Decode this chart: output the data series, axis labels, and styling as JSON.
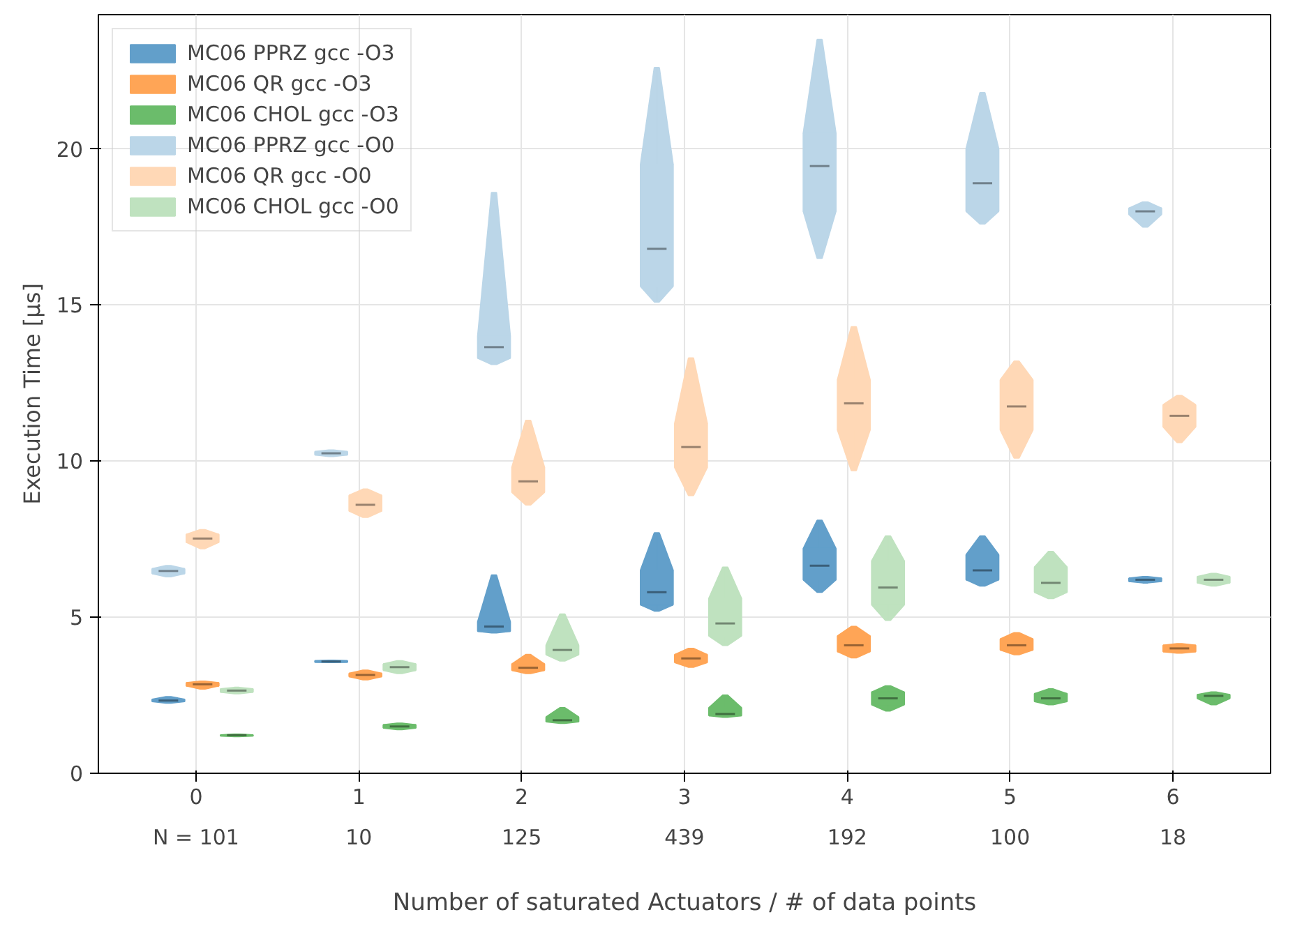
{
  "chart_data": {
    "type": "box",
    "categories": [
      "0",
      "1",
      "2",
      "3",
      "4",
      "5",
      "6"
    ],
    "xlabel": "Number of saturated Actuators / # of data points",
    "ylabel": "Execution Time [µs]",
    "ylim": [
      0,
      24.3
    ],
    "yticks": [
      0,
      5,
      10,
      15,
      20
    ],
    "grid": true,
    "legend": "top left",
    "annotations": [
      "N = 101",
      "10",
      "125",
      "439",
      "192",
      "100",
      "18"
    ],
    "series": [
      {
        "name": "MC06 PPRZ gcc -O3",
        "color": "#629fca",
        "boxes": [
          {
            "low": 2.25,
            "q1": 2.3,
            "median": 2.33,
            "q3": 2.37,
            "high": 2.45
          },
          {
            "low": 3.55,
            "q1": 3.56,
            "median": 3.58,
            "q3": 3.6,
            "high": 3.62
          },
          {
            "low": 4.5,
            "q1": 4.55,
            "median": 4.7,
            "q3": 4.85,
            "high": 6.35
          },
          {
            "low": 5.2,
            "q1": 5.4,
            "median": 5.8,
            "q3": 6.5,
            "high": 7.7
          },
          {
            "low": 5.8,
            "q1": 6.2,
            "median": 6.65,
            "q3": 7.2,
            "high": 8.1
          },
          {
            "low": 6.0,
            "q1": 6.2,
            "median": 6.5,
            "q3": 7.0,
            "high": 7.6
          },
          {
            "low": 6.1,
            "q1": 6.15,
            "median": 6.2,
            "q3": 6.25,
            "high": 6.3
          }
        ]
      },
      {
        "name": "MC06 QR gcc -O3",
        "color": "#ffa556",
        "boxes": [
          {
            "low": 2.7,
            "q1": 2.8,
            "median": 2.85,
            "q3": 2.9,
            "high": 2.95
          },
          {
            "low": 3.0,
            "q1": 3.1,
            "median": 3.15,
            "q3": 3.2,
            "high": 3.3
          },
          {
            "low": 3.2,
            "q1": 3.3,
            "median": 3.38,
            "q3": 3.5,
            "high": 3.8
          },
          {
            "low": 3.4,
            "q1": 3.55,
            "median": 3.68,
            "q3": 3.8,
            "high": 4.0
          },
          {
            "low": 3.7,
            "q1": 3.9,
            "median": 4.1,
            "q3": 4.4,
            "high": 4.7
          },
          {
            "low": 3.8,
            "q1": 3.95,
            "median": 4.1,
            "q3": 4.3,
            "high": 4.5
          },
          {
            "low": 3.85,
            "q1": 3.9,
            "median": 4.0,
            "q3": 4.1,
            "high": 4.15
          }
        ]
      },
      {
        "name": "MC06 CHOL gcc -O3",
        "color": "#6bbc6b",
        "boxes": [
          {
            "low": 1.18,
            "q1": 1.2,
            "median": 1.22,
            "q3": 1.23,
            "high": 1.25
          },
          {
            "low": 1.4,
            "q1": 1.45,
            "median": 1.5,
            "q3": 1.55,
            "high": 1.6
          },
          {
            "low": 1.6,
            "q1": 1.65,
            "median": 1.7,
            "q3": 1.8,
            "high": 2.1
          },
          {
            "low": 1.8,
            "q1": 1.85,
            "median": 1.9,
            "q3": 2.1,
            "high": 2.5
          },
          {
            "low": 2.0,
            "q1": 2.2,
            "median": 2.4,
            "q3": 2.6,
            "high": 2.8
          },
          {
            "low": 2.2,
            "q1": 2.3,
            "median": 2.4,
            "q3": 2.55,
            "high": 2.7
          },
          {
            "low": 2.2,
            "q1": 2.4,
            "median": 2.48,
            "q3": 2.52,
            "high": 2.6
          }
        ]
      },
      {
        "name": "MC06 PPRZ gcc -O0",
        "color": "#bbd6e8",
        "boxes": [
          {
            "low": 6.3,
            "q1": 6.4,
            "median": 6.48,
            "q3": 6.55,
            "high": 6.65
          },
          {
            "low": 10.15,
            "q1": 10.2,
            "median": 10.25,
            "q3": 10.3,
            "high": 10.35
          },
          {
            "low": 13.1,
            "q1": 13.3,
            "median": 13.65,
            "q3": 14.0,
            "high": 18.6
          },
          {
            "low": 15.1,
            "q1": 15.6,
            "median": 16.8,
            "q3": 19.5,
            "high": 22.6
          },
          {
            "low": 16.5,
            "q1": 18.0,
            "median": 19.45,
            "q3": 20.5,
            "high": 23.5
          },
          {
            "low": 17.6,
            "q1": 18.0,
            "median": 18.9,
            "q3": 20.0,
            "high": 21.8
          },
          {
            "low": 17.5,
            "q1": 17.9,
            "median": 18.0,
            "q3": 18.1,
            "high": 18.3
          }
        ]
      },
      {
        "name": "MC06 QR gcc -O0",
        "color": "#ffd8b6",
        "boxes": [
          {
            "low": 7.2,
            "q1": 7.4,
            "median": 7.52,
            "q3": 7.65,
            "high": 7.8
          },
          {
            "low": 8.2,
            "q1": 8.4,
            "median": 8.6,
            "q3": 8.9,
            "high": 9.1
          },
          {
            "low": 8.6,
            "q1": 9.0,
            "median": 9.35,
            "q3": 9.8,
            "high": 11.3
          },
          {
            "low": 8.9,
            "q1": 9.8,
            "median": 10.45,
            "q3": 11.2,
            "high": 13.3
          },
          {
            "low": 9.7,
            "q1": 11.0,
            "median": 11.85,
            "q3": 12.6,
            "high": 14.3
          },
          {
            "low": 10.1,
            "q1": 11.0,
            "median": 11.75,
            "q3": 12.6,
            "high": 13.2
          },
          {
            "low": 10.6,
            "q1": 11.1,
            "median": 11.45,
            "q3": 11.8,
            "high": 12.1
          }
        ]
      },
      {
        "name": "MC06 CHOL gcc -O0",
        "color": "#bfe2bf",
        "boxes": [
          {
            "low": 2.55,
            "q1": 2.6,
            "median": 2.65,
            "q3": 2.7,
            "high": 2.75
          },
          {
            "low": 3.2,
            "q1": 3.3,
            "median": 3.4,
            "q3": 3.5,
            "high": 3.6
          },
          {
            "low": 3.6,
            "q1": 3.8,
            "median": 3.95,
            "q3": 4.1,
            "high": 5.1
          },
          {
            "low": 4.1,
            "q1": 4.4,
            "median": 4.8,
            "q3": 5.6,
            "high": 6.6
          },
          {
            "low": 4.9,
            "q1": 5.4,
            "median": 5.95,
            "q3": 6.8,
            "high": 7.6
          },
          {
            "low": 5.6,
            "q1": 5.8,
            "median": 6.1,
            "q3": 6.6,
            "high": 7.1
          },
          {
            "low": 6.0,
            "q1": 6.1,
            "median": 6.2,
            "q3": 6.3,
            "high": 6.4
          }
        ]
      }
    ]
  }
}
